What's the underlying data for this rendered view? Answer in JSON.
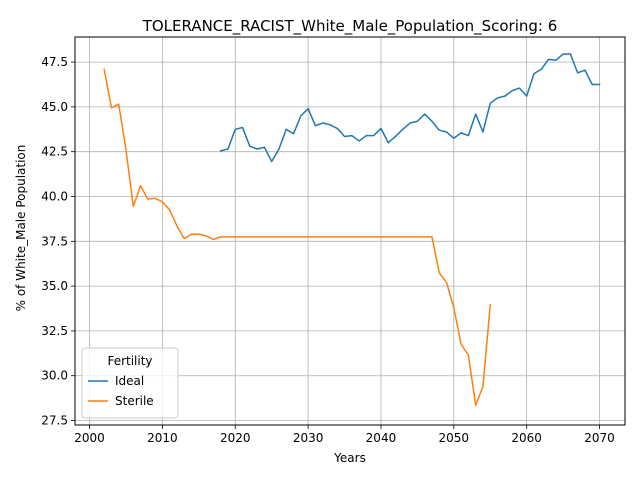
{
  "chart_data": {
    "type": "line",
    "title": "TOLERANCE_RACIST_White_Male_Population_Scoring: 6",
    "xlabel": "Years",
    "ylabel": "% of White_Male Population",
    "xlim": [
      1998,
      2073.5
    ],
    "ylim": [
      27.25,
      48.9
    ],
    "xticks": [
      2000,
      2010,
      2020,
      2030,
      2040,
      2050,
      2060,
      2070
    ],
    "yticks": [
      27.5,
      30.0,
      32.5,
      35.0,
      37.5,
      40.0,
      42.5,
      45.0,
      47.5
    ],
    "ytick_labels": [
      "27.5",
      "30.0",
      "32.5",
      "35.0",
      "37.5",
      "40.0",
      "42.5",
      "45.0",
      "47.5"
    ],
    "grid": true,
    "legend": {
      "title": "Fertility",
      "placement": "lower-left"
    },
    "series": [
      {
        "name": "Ideal",
        "color": "#1f77b4",
        "x": [
          2018,
          2019,
          2020,
          2021,
          2022,
          2023,
          2024,
          2025,
          2026,
          2027,
          2028,
          2029,
          2030,
          2031,
          2032,
          2033,
          2034,
          2035,
          2036,
          2037,
          2038,
          2039,
          2040,
          2041,
          2042,
          2043,
          2044,
          2045,
          2046,
          2047,
          2048,
          2049,
          2050,
          2051,
          2052,
          2053,
          2054,
          2055,
          2056,
          2057,
          2058,
          2059,
          2060,
          2061,
          2062,
          2063,
          2064,
          2065,
          2066,
          2067,
          2068,
          2069,
          2070
        ],
        "y": [
          42.55,
          42.65,
          43.75,
          43.85,
          42.8,
          42.65,
          42.75,
          41.95,
          42.65,
          43.75,
          43.5,
          44.5,
          44.9,
          43.95,
          44.1,
          44.0,
          43.8,
          43.35,
          43.4,
          43.1,
          43.4,
          43.4,
          43.8,
          43.0,
          43.35,
          43.75,
          44.1,
          44.2,
          44.6,
          44.2,
          43.7,
          43.6,
          43.25,
          43.55,
          43.4,
          44.6,
          43.6,
          45.2,
          45.5,
          45.6,
          45.9,
          46.05,
          45.6,
          46.85,
          47.1,
          47.65,
          47.6,
          47.95,
          47.95,
          46.9,
          47.05,
          46.25,
          46.25
        ]
      },
      {
        "name": "Sterile",
        "color": "#ff7f0e",
        "x": [
          2002,
          2003,
          2004,
          2005,
          2006,
          2007,
          2008,
          2009,
          2010,
          2011,
          2012,
          2013,
          2014,
          2015,
          2016,
          2017,
          2018,
          2019,
          2020,
          2021,
          2022,
          2023,
          2024,
          2025,
          2026,
          2027,
          2028,
          2029,
          2030,
          2031,
          2032,
          2033,
          2034,
          2035,
          2036,
          2037,
          2038,
          2039,
          2040,
          2041,
          2042,
          2043,
          2044,
          2045,
          2046,
          2047,
          2048,
          2049,
          2050,
          2051,
          2052,
          2053,
          2054,
          2055
        ],
        "y": [
          47.1,
          44.95,
          45.15,
          42.6,
          39.45,
          40.6,
          39.85,
          39.9,
          39.7,
          39.25,
          38.35,
          37.65,
          37.9,
          37.9,
          37.8,
          37.6,
          37.75,
          37.75,
          37.75,
          37.75,
          37.75,
          37.75,
          37.75,
          37.75,
          37.75,
          37.75,
          37.75,
          37.75,
          37.75,
          37.75,
          37.75,
          37.75,
          37.75,
          37.75,
          37.75,
          37.75,
          37.75,
          37.75,
          37.75,
          37.75,
          37.75,
          37.75,
          37.75,
          37.75,
          37.75,
          37.75,
          35.75,
          35.2,
          33.8,
          31.75,
          31.15,
          28.35,
          29.4,
          33.95
        ]
      }
    ]
  }
}
